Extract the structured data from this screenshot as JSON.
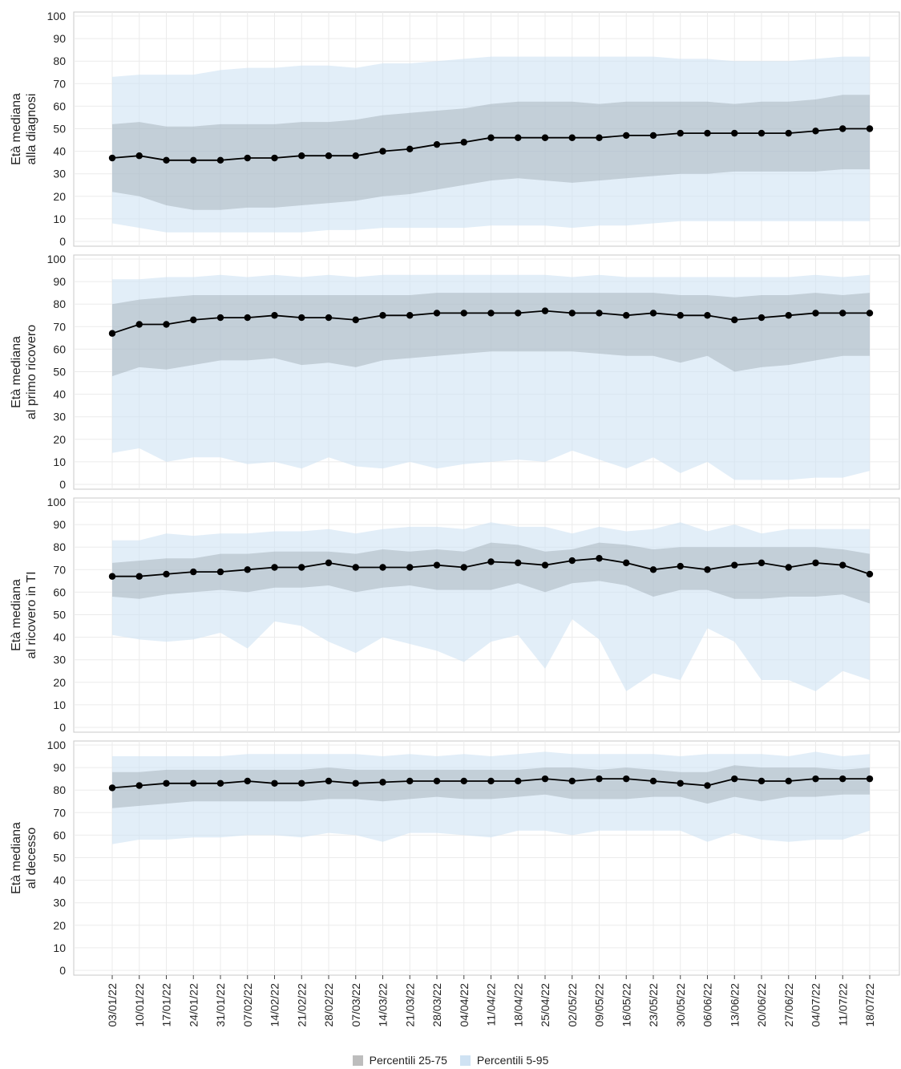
{
  "chart_data": {
    "type": "area",
    "x": [
      "03/01/22",
      "10/01/22",
      "17/01/22",
      "24/01/22",
      "31/01/22",
      "07/02/22",
      "14/02/22",
      "21/02/22",
      "28/02/22",
      "07/03/22",
      "14/03/22",
      "21/03/22",
      "28/03/22",
      "04/04/22",
      "11/04/22",
      "18/04/22",
      "25/04/22",
      "02/05/22",
      "09/05/22",
      "16/05/22",
      "23/05/22",
      "30/05/22",
      "06/06/22",
      "13/06/22",
      "20/06/22",
      "27/06/22",
      "04/07/22",
      "11/07/22",
      "18/07/22"
    ],
    "ylim": [
      0,
      100
    ],
    "yticks": [
      "0",
      "10",
      "20",
      "30",
      "40",
      "50",
      "60",
      "70",
      "80",
      "90",
      "100"
    ],
    "grid": true,
    "legend_position": "bottom",
    "legend": [
      "Percentili 25-75",
      "Percentili 5-95"
    ],
    "colors": {
      "iqr_band": "#8a949e",
      "p5_95_band": "#cfe2f3",
      "median_line": "#000000",
      "grid": "#ebebeb",
      "panel_border": "#c8c8c8"
    },
    "panels": [
      {
        "ylabel": [
          "Età mediana",
          "alla diagnosi"
        ],
        "median": [
          37,
          38,
          36,
          36,
          36,
          37,
          37,
          38,
          38,
          38,
          40,
          41,
          43,
          44,
          46,
          46,
          46,
          46,
          46,
          47,
          47,
          48,
          48,
          48,
          48,
          48,
          49,
          50,
          50
        ],
        "p25": [
          22,
          20,
          16,
          14,
          14,
          15,
          15,
          16,
          17,
          18,
          20,
          21,
          23,
          25,
          27,
          28,
          27,
          26,
          27,
          28,
          29,
          30,
          30,
          31,
          31,
          31,
          31,
          32,
          32
        ],
        "p75": [
          52,
          53,
          51,
          51,
          52,
          52,
          52,
          53,
          53,
          54,
          56,
          57,
          58,
          59,
          61,
          62,
          62,
          62,
          61,
          62,
          62,
          62,
          62,
          61,
          62,
          62,
          63,
          65,
          65
        ],
        "p5": [
          8,
          6,
          4,
          4,
          4,
          4,
          4,
          4,
          5,
          5,
          6,
          6,
          6,
          6,
          7,
          7,
          7,
          6,
          7,
          7,
          8,
          9,
          9,
          9,
          9,
          9,
          9,
          9,
          9
        ],
        "p95": [
          73,
          74,
          74,
          74,
          76,
          77,
          77,
          78,
          78,
          77,
          79,
          79,
          80,
          81,
          82,
          82,
          82,
          82,
          82,
          82,
          82,
          81,
          81,
          80,
          80,
          80,
          81,
          82,
          82
        ]
      },
      {
        "ylabel": [
          "Età mediana",
          "al primo ricovero"
        ],
        "median": [
          67,
          71,
          71,
          73,
          74,
          74,
          75,
          74,
          74,
          73,
          75,
          75,
          76,
          76,
          76,
          76,
          77,
          76,
          76,
          75,
          76,
          75,
          75,
          73,
          74,
          75,
          76,
          76,
          76
        ],
        "p25": [
          48,
          52,
          51,
          53,
          55,
          55,
          56,
          53,
          54,
          52,
          55,
          56,
          57,
          58,
          59,
          59,
          59,
          59,
          58,
          57,
          57,
          54,
          57,
          50,
          52,
          53,
          55,
          57,
          57
        ],
        "p75": [
          80,
          82,
          83,
          84,
          84,
          84,
          84,
          84,
          84,
          84,
          84,
          84,
          85,
          85,
          85,
          85,
          85,
          85,
          85,
          85,
          85,
          84,
          84,
          83,
          84,
          84,
          85,
          84,
          85
        ],
        "p5": [
          14,
          16,
          10,
          12,
          12,
          9,
          10,
          7,
          12,
          8,
          7,
          10,
          7,
          9,
          10,
          11,
          10,
          15,
          11,
          7,
          12,
          5,
          10,
          2,
          2,
          2,
          3,
          3,
          6
        ],
        "p95": [
          91,
          91,
          92,
          92,
          93,
          92,
          93,
          92,
          93,
          92,
          93,
          93,
          93,
          93,
          93,
          93,
          93,
          92,
          93,
          92,
          92,
          92,
          92,
          92,
          92,
          92,
          93,
          92,
          93
        ]
      },
      {
        "ylabel": [
          "Età mediana",
          "al ricovero in TI"
        ],
        "median": [
          67,
          67,
          68,
          69,
          69,
          70,
          71,
          71,
          73,
          71,
          71,
          71,
          72,
          71,
          73.5,
          73,
          72,
          74,
          75,
          73,
          70,
          71.5,
          70,
          72,
          73,
          71,
          73,
          72,
          68
        ],
        "p25": [
          58,
          57,
          59,
          60,
          61,
          60,
          62,
          62,
          63,
          60,
          62,
          63,
          61,
          61,
          61,
          64,
          60,
          64,
          65,
          63,
          58,
          61,
          61,
          57,
          57,
          58,
          58,
          59,
          55
        ],
        "p75": [
          73,
          74,
          75,
          75,
          77,
          77,
          78,
          78,
          78,
          77,
          79,
          78,
          79,
          78,
          82,
          81,
          78,
          79,
          82,
          81,
          79,
          80,
          80,
          80,
          80,
          80,
          80,
          79,
          77
        ],
        "p5": [
          41,
          39,
          38,
          39,
          42,
          35,
          47,
          45,
          38,
          33,
          40,
          37,
          34,
          29,
          38,
          41,
          26,
          48,
          39,
          16,
          24,
          21,
          44,
          38,
          21,
          21,
          16,
          25,
          21
        ],
        "p95": [
          83,
          83,
          86,
          85,
          86,
          86,
          87,
          87,
          88,
          86,
          88,
          89,
          89,
          88,
          91,
          89,
          89,
          86,
          89,
          87,
          88,
          91,
          87,
          90,
          86,
          88,
          88,
          88,
          88
        ]
      },
      {
        "ylabel": [
          "Età mediana",
          "al decesso"
        ],
        "median": [
          81,
          82,
          83,
          83,
          83,
          84,
          83,
          83,
          84,
          83,
          83.5,
          84,
          84,
          84,
          84,
          84,
          85,
          84,
          85,
          85,
          84,
          83,
          82,
          85,
          84,
          84,
          85,
          85,
          85
        ],
        "p25": [
          72,
          73,
          74,
          75,
          75,
          75,
          75,
          75,
          76,
          76,
          75,
          76,
          77,
          76,
          76,
          77,
          78,
          76,
          76,
          76,
          77,
          77,
          74,
          77,
          75,
          77,
          77,
          78,
          78
        ],
        "p75": [
          88,
          88,
          89,
          89,
          89,
          89,
          89,
          89,
          90,
          89,
          89,
          89,
          89,
          89,
          89,
          89,
          90,
          90,
          89,
          90,
          89,
          88,
          88,
          91,
          90,
          90,
          90,
          89,
          90
        ],
        "p5": [
          56,
          58,
          58,
          59,
          59,
          60,
          60,
          59,
          61,
          60,
          57,
          61,
          61,
          60,
          59,
          62,
          62,
          60,
          62,
          62,
          62,
          62,
          57,
          61,
          58,
          57,
          58,
          58,
          62
        ],
        "p95": [
          95,
          95,
          95,
          95,
          95,
          96,
          96,
          96,
          96,
          96,
          95,
          96,
          95,
          96,
          95,
          96,
          97,
          96,
          96,
          96,
          96,
          95,
          96,
          96,
          96,
          95,
          97,
          95,
          96
        ]
      }
    ]
  }
}
